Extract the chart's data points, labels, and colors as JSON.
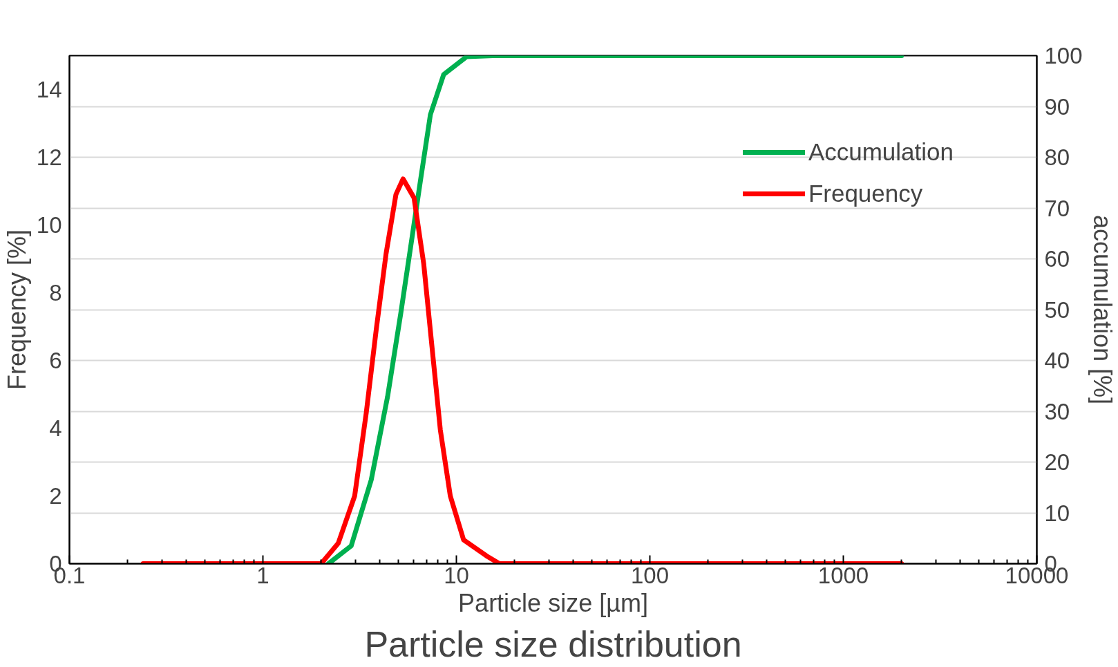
{
  "chart_data": {
    "type": "line",
    "title": "Particle size distribution",
    "xlabel": "Particle size [µm]",
    "ylabel": "Frequency [%]",
    "y2label": "accumulation [%]",
    "log": "x",
    "xlim": [
      0.1,
      10000
    ],
    "xticks": [
      0.1,
      1,
      10,
      100,
      1000,
      10000
    ],
    "ylim": [
      0,
      15
    ],
    "yticks": [
      0,
      2,
      4,
      6,
      8,
      10,
      12,
      14
    ],
    "y2lim": [
      0,
      100
    ],
    "y2ticks": [
      0,
      10,
      20,
      30,
      40,
      50,
      60,
      70,
      80,
      90,
      100
    ],
    "grid": "y",
    "legend": "top right",
    "line_style": "solid",
    "marker": "none",
    "series": [
      {
        "name": "Accumulation",
        "color": "#00b050",
        "axis": "y2",
        "x": [
          2.18,
          2.86,
          3.63,
          4.41,
          5.16,
          5.8,
          6.52,
          7.34,
          8.6,
          11.3,
          15.5,
          2000
        ],
        "values": [
          0,
          3.5,
          16.5,
          32.9,
          49.3,
          62.3,
          75.4,
          88.4,
          96.3,
          99.8,
          100,
          100
        ]
      },
      {
        "name": "Frequency",
        "color": "#ff0000",
        "x": [
          0.24,
          2.0,
          2.45,
          2.98,
          3.42,
          3.85,
          4.33,
          4.87,
          5.3,
          6.04,
          6.78,
          7.48,
          8.26,
          9.3,
          10.9,
          14.3,
          16.7,
          2000
        ],
        "values": [
          0,
          0,
          0.6,
          2.0,
          4.45,
          6.9,
          9.15,
          10.9,
          11.36,
          10.8,
          8.85,
          6.4,
          3.95,
          2.0,
          0.7,
          0.23,
          0,
          0
        ]
      }
    ]
  }
}
